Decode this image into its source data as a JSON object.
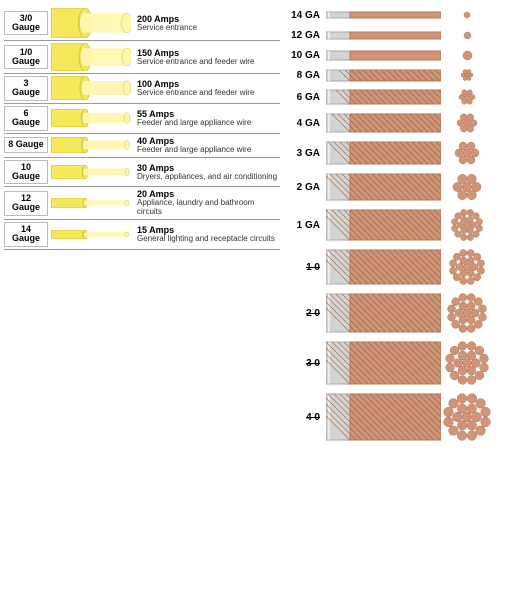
{
  "colors": {
    "insulation_yellow": "#f5e85a",
    "insulation_shadow": "#d6c838",
    "core_yellow": "#fff7b0",
    "copper": "#cf9576",
    "copper_dark": "#b3755a",
    "copper_hatch": "#8a5a3f",
    "sheath_gray": "#d4d4d4",
    "sheath_dark": "#a9a9a9",
    "line": "#555555"
  },
  "left_rows": [
    {
      "gauge_top": "3/0",
      "gauge_bot": "Gauge",
      "amps": "200 Amps",
      "desc": "Service entrance",
      "dia": 22,
      "pad": 4
    },
    {
      "gauge_top": "1/0",
      "gauge_bot": "Gauge",
      "amps": "150 Amps",
      "desc": "Service entrance and feeder wire",
      "dia": 20,
      "pad": 4
    },
    {
      "gauge_top": "3",
      "gauge_bot": "Gauge",
      "amps": "100 Amps",
      "desc": "Service entrance and feeder wire",
      "dia": 16,
      "pad": 4
    },
    {
      "gauge_top": "6",
      "gauge_bot": "Gauge",
      "amps": "55 Amps",
      "desc": "Feeder and large appliance wire",
      "dia": 12,
      "pad": 3
    },
    {
      "gauge_top": "8 Gauge",
      "gauge_bot": "",
      "amps": "40 Amps",
      "desc": "Feeder and large appliance wire",
      "dia": 10,
      "pad": 3,
      "single": true
    },
    {
      "gauge_top": "10 Gauge",
      "gauge_bot": "",
      "amps": "30 Amps",
      "desc": "Dryers, appliances, and air conditioning",
      "dia": 8,
      "pad": 3,
      "single": true
    },
    {
      "gauge_top": "12 Gauge",
      "gauge_bot": "",
      "amps": "20 Amps",
      "desc": "Appliance, laundry and bathroom circuits",
      "dia": 6,
      "pad": 2,
      "single": true
    },
    {
      "gauge_top": "14 Gauge",
      "gauge_bot": "",
      "amps": "15 Amps",
      "desc": "General lighting and receptacle circuits",
      "dia": 5,
      "pad": 2,
      "single": true
    }
  ],
  "right_rows": [
    {
      "ga": "14 GA",
      "dia": 6,
      "strands": 1,
      "xsec_r": 3
    },
    {
      "ga": "12 GA",
      "dia": 7,
      "strands": 1,
      "xsec_r": 3.5
    },
    {
      "ga": "10 GA",
      "dia": 9,
      "strands": 1,
      "xsec_r": 4.5
    },
    {
      "ga": "8 GA",
      "dia": 11,
      "strands": 7,
      "xsec_r": 6
    },
    {
      "ga": "6 GA",
      "dia": 14,
      "strands": 7,
      "xsec_r": 8
    },
    {
      "ga": "4 GA",
      "dia": 18,
      "strands": 7,
      "xsec_r": 10
    },
    {
      "ga": "3 GA",
      "dia": 22,
      "strands": 7,
      "xsec_r": 12
    },
    {
      "ga": "2 GA",
      "dia": 26,
      "strands": 7,
      "xsec_r": 14
    },
    {
      "ga": "1 GA",
      "dia": 30,
      "strands": 19,
      "xsec_r": 16
    },
    {
      "ga": "1 0",
      "dia": 34,
      "strands": 19,
      "xsec_r": 18,
      "strike": true
    },
    {
      "ga": "2 0",
      "dia": 38,
      "strands": 19,
      "xsec_r": 20,
      "strike": true
    },
    {
      "ga": "3 0",
      "dia": 42,
      "strands": 19,
      "xsec_r": 22,
      "strike": true
    },
    {
      "ga": "4 0",
      "dia": 46,
      "strands": 19,
      "xsec_r": 24,
      "strike": true
    }
  ]
}
